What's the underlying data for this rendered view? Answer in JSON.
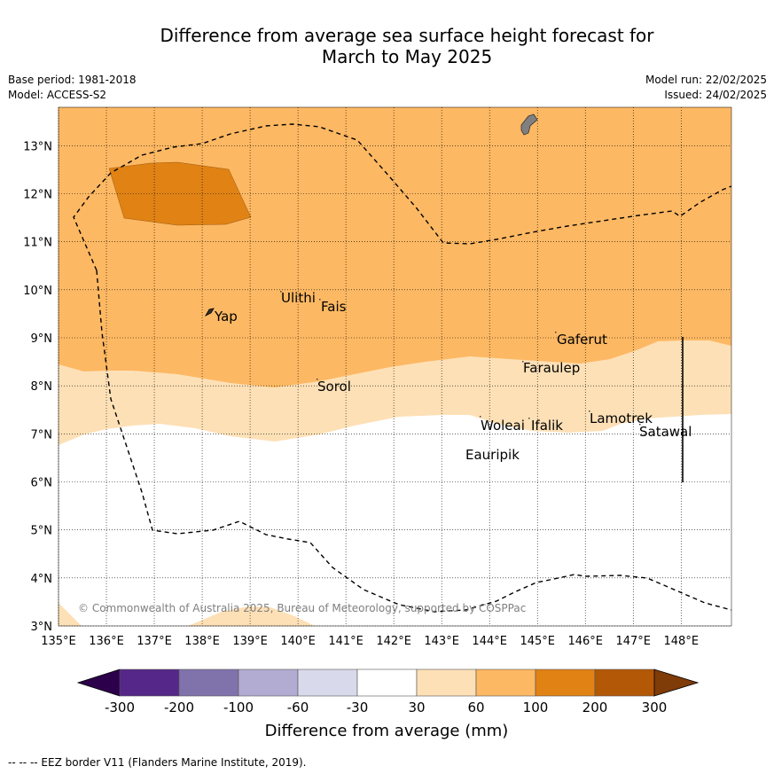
{
  "title_line1": "Difference from average sea surface height forecast for",
  "title_line2": "March to May 2025",
  "meta": {
    "base_period": "Base period: 1981-2018",
    "model": "Model: ACCESS-S2",
    "model_run": "Model run: 22/02/2025",
    "issued": "Issued: 24/02/2025"
  },
  "map": {
    "lon_labels": [
      "135°E",
      "136°E",
      "137°E",
      "138°E",
      "139°E",
      "140°E",
      "141°E",
      "142°E",
      "143°E",
      "144°E",
      "145°E",
      "146°E",
      "147°E",
      "148°E"
    ],
    "lat_labels": [
      "3°N",
      "4°N",
      "5°N",
      "6°N",
      "7°N",
      "8°N",
      "9°N",
      "10°N",
      "11°N",
      "12°N",
      "13°N"
    ],
    "lon_range": [
      135,
      149.05
    ],
    "lat_range": [
      3,
      13.8
    ],
    "places": [
      {
        "name": "Ulithi",
        "label": "Ulithi"
      },
      {
        "name": "Fais",
        "label": "Fais"
      },
      {
        "name": "Yap",
        "label": "Yap"
      },
      {
        "name": "Gaferut",
        "label": "Gaferut"
      },
      {
        "name": "Faraulep",
        "label": "Faraulep"
      },
      {
        "name": "Sorol",
        "label": "Sorol"
      },
      {
        "name": "Woleai",
        "label": "Woleai"
      },
      {
        "name": "Ifalik",
        "label": "Ifalik"
      },
      {
        "name": "Lamotrek",
        "label": "Lamotrek"
      },
      {
        "name": "Satawal",
        "label": "Satawal"
      },
      {
        "name": "Eauripik",
        "label": "Eauripik"
      }
    ],
    "copyright": "© Commonwealth of Australia 2025, Bureau of Meteorology, supported by COSPPac"
  },
  "colorbar": {
    "ticks": [
      "-300",
      "-200",
      "-100",
      "-60",
      "-30",
      "30",
      "60",
      "100",
      "200",
      "300"
    ],
    "under_color": "#2d004b",
    "over_color": "#7f3b08",
    "colors": [
      "#542788",
      "#8073ac",
      "#b2abd2",
      "#d8daeb",
      "#ffffff",
      "#fee0b6",
      "#fdb863",
      "#e08214",
      "#b35806"
    ],
    "label": "Difference from average (mm)"
  },
  "footer": "--  --  -- EEZ border V11 (Flanders Marine Institute, 2019)."
}
